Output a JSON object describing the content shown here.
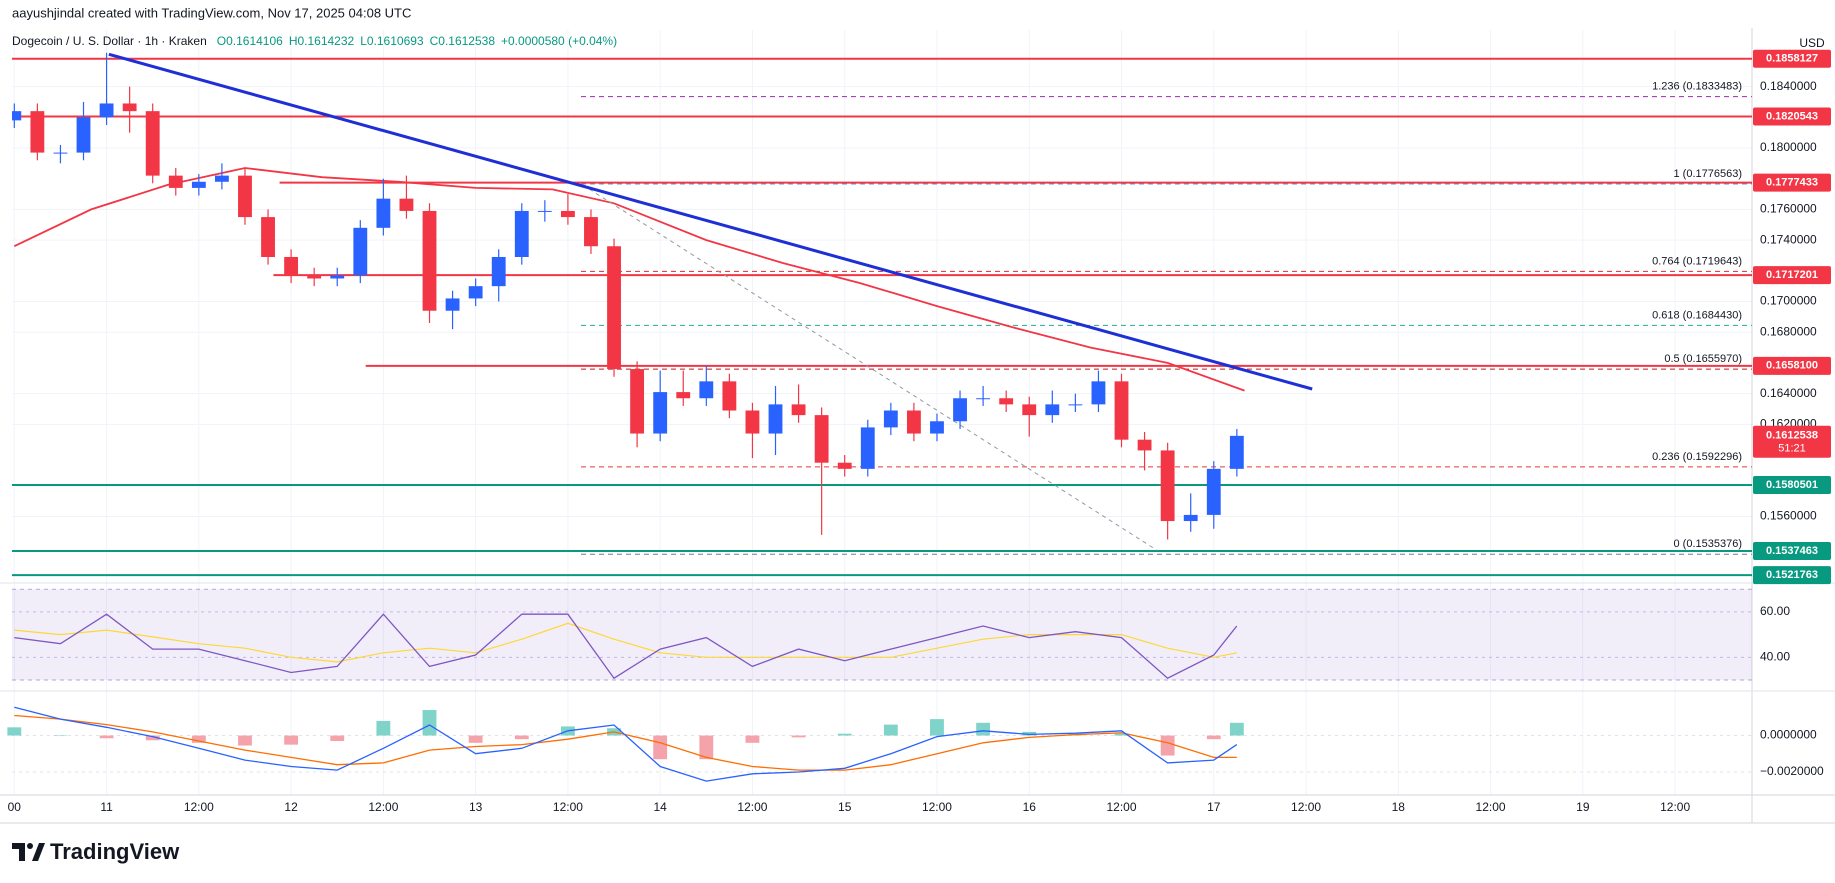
{
  "chart_data": {
    "type": "candlestick",
    "attribution": "aayushjindal created with TradingView.com, Nov 17, 2025 04:08 UTC",
    "title": "Dogecoin / U. S. Dollar · 1h · Kraken",
    "ohlc_labels": [
      "O0.1614106",
      "H0.1614232",
      "L0.1610693",
      "C0.1612538",
      "+0.0000580 (+0.04%)"
    ],
    "currency": "USD",
    "up_color": "#2962ff",
    "down_color": "#f23645",
    "x": [
      0,
      3,
      6,
      9,
      12,
      15,
      18,
      21,
      24,
      27,
      30,
      33,
      36,
      39,
      42,
      45,
      48,
      51,
      54,
      57,
      60,
      63,
      66,
      69,
      72,
      75,
      78,
      81,
      84,
      87,
      90,
      93,
      96,
      99,
      102,
      105,
      108,
      111,
      114,
      117,
      120,
      123,
      126,
      129,
      132,
      135,
      138,
      141,
      144,
      147,
      150,
      153,
      156,
      159
    ],
    "open": [
      0.1818,
      0.1824,
      0.1797,
      0.1797,
      0.182,
      0.1829,
      0.1824,
      0.1782,
      0.1774,
      0.1778,
      0.1782,
      0.1755,
      0.1729,
      0.1717,
      0.1715,
      0.1717,
      0.1748,
      0.1767,
      0.1759,
      0.1694,
      0.1702,
      0.171,
      0.1729,
      0.1759,
      0.1759,
      0.1755,
      0.1736,
      0.1656,
      0.1614,
      0.1641,
      0.1637,
      0.1648,
      0.1629,
      0.1614,
      0.1633,
      0.1626,
      0.1595,
      0.1591,
      0.1618,
      0.1629,
      0.1614,
      0.1622,
      0.1637,
      0.1637,
      0.1633,
      0.1626,
      0.1633,
      0.1633,
      0.1648,
      0.161,
      0.1603,
      0.1557,
      0.1561,
      0.1591
    ],
    "high": [
      0.1829,
      0.1829,
      0.1802,
      0.183,
      0.1862,
      0.184,
      0.1829,
      0.1787,
      0.1783,
      0.179,
      0.1787,
      0.176,
      0.1734,
      0.1722,
      0.1722,
      0.1753,
      0.178,
      0.1782,
      0.1764,
      0.1707,
      0.1715,
      0.1734,
      0.1764,
      0.1766,
      0.177,
      0.176,
      0.1741,
      0.1661,
      0.1655,
      0.1655,
      0.1658,
      0.1653,
      0.1634,
      0.1645,
      0.1646,
      0.1631,
      0.16,
      0.1623,
      0.1634,
      0.1634,
      0.1627,
      0.1642,
      0.1645,
      0.1642,
      0.1638,
      0.1642,
      0.164,
      0.1655,
      0.1653,
      0.1615,
      0.1608,
      0.1575,
      0.1596,
      0.1617
    ],
    "low": [
      0.1813,
      0.1792,
      0.179,
      0.1792,
      0.1815,
      0.181,
      0.1777,
      0.1769,
      0.1769,
      0.1773,
      0.175,
      0.1724,
      0.1712,
      0.171,
      0.171,
      0.1712,
      0.1743,
      0.1754,
      0.1686,
      0.1682,
      0.1697,
      0.17,
      0.1724,
      0.1752,
      0.175,
      0.1731,
      0.1651,
      0.1605,
      0.1609,
      0.1632,
      0.1632,
      0.1624,
      0.1598,
      0.16,
      0.1621,
      0.1548,
      0.1586,
      0.1586,
      0.1613,
      0.1609,
      0.1609,
      0.1617,
      0.1632,
      0.1628,
      0.1612,
      0.1621,
      0.1628,
      0.1628,
      0.1605,
      0.159,
      0.1545,
      0.155,
      0.1552,
      0.1586
    ],
    "close": [
      0.1824,
      0.1797,
      0.1797,
      0.182,
      0.1829,
      0.1824,
      0.1782,
      0.1774,
      0.1778,
      0.1782,
      0.1755,
      0.1729,
      0.1717,
      0.1715,
      0.1717,
      0.1748,
      0.1767,
      0.1759,
      0.1694,
      0.1702,
      0.171,
      0.1729,
      0.1759,
      0.1759,
      0.1755,
      0.1736,
      0.1656,
      0.1614,
      0.1641,
      0.1637,
      0.1648,
      0.1629,
      0.1614,
      0.1633,
      0.1626,
      0.1595,
      0.1591,
      0.1618,
      0.1629,
      0.1614,
      0.1622,
      0.1637,
      0.1637,
      0.1633,
      0.1626,
      0.1633,
      0.1633,
      0.1648,
      0.161,
      0.1603,
      0.1557,
      0.1561,
      0.1591,
      0.16125
    ],
    "xlim": [
      -0.3,
      226
    ],
    "xticks": [
      {
        "value": 0,
        "label": "00"
      },
      {
        "value": 12,
        "label": "11"
      },
      {
        "value": 24,
        "label": "12:00"
      },
      {
        "value": 36,
        "label": "12"
      },
      {
        "value": 48,
        "label": "12:00"
      },
      {
        "value": 60,
        "label": "13"
      },
      {
        "value": 72,
        "label": "12:00"
      },
      {
        "value": 84,
        "label": "14"
      },
      {
        "value": 96,
        "label": "12:00"
      },
      {
        "value": 108,
        "label": "15"
      },
      {
        "value": 120,
        "label": "12:00"
      },
      {
        "value": 132,
        "label": "16"
      },
      {
        "value": 144,
        "label": "12:00"
      },
      {
        "value": 156,
        "label": "17"
      },
      {
        "value": 168,
        "label": "12:00"
      },
      {
        "value": 180,
        "label": "18"
      },
      {
        "value": 192,
        "label": "12:00"
      },
      {
        "value": 204,
        "label": "19"
      },
      {
        "value": 216,
        "label": "12:00"
      }
    ],
    "ylim": [
      0.15173,
      0.18736
    ],
    "yticks": [
      {
        "value": 0.184,
        "label": "0.1840000"
      },
      {
        "value": 0.18,
        "label": "0.1800000"
      },
      {
        "value": 0.176,
        "label": "0.1760000"
      },
      {
        "value": 0.174,
        "label": "0.1740000"
      },
      {
        "value": 0.17,
        "label": "0.1700000"
      },
      {
        "value": 0.168,
        "label": "0.1680000"
      },
      {
        "value": 0.164,
        "label": "0.1640000"
      },
      {
        "value": 0.162,
        "label": "0.1620000"
      },
      {
        "value": 0.156,
        "label": "0.1560000"
      }
    ],
    "grid": true,
    "levels": [
      {
        "value": 0.1858127,
        "label": "0.1858127",
        "color": "#f23645",
        "start": -0.3
      },
      {
        "value": 0.1820543,
        "label": "0.1820543",
        "color": "#f23645",
        "start": -0.3
      },
      {
        "value": 0.1777433,
        "label": "0.1777433",
        "color": "#f23645",
        "start": 34.5
      },
      {
        "value": 0.1717201,
        "label": "0.1717201",
        "color": "#f23645",
        "start": 33.7
      },
      {
        "value": 0.16581,
        "label": "0.1658100",
        "color": "#f23645",
        "start": 45.7
      },
      {
        "value": 0.1580501,
        "label": "0.1580501",
        "color": "#089981",
        "start": -0.3
      },
      {
        "value": 0.1537463,
        "label": "0.1537463",
        "color": "#089981",
        "start": -0.3
      },
      {
        "value": 0.1521763,
        "label": "0.1521763",
        "color": "#089981",
        "start": -0.3
      }
    ],
    "fib_start": 73.7,
    "fib_levels": [
      {
        "value": 0.1833483,
        "label": "1.236 (0.1833483)",
        "color": "#9c27b0"
      },
      {
        "value": 0.1776563,
        "label": "1 (0.1776563)",
        "color": "#4aa3df"
      },
      {
        "value": 0.1719643,
        "label": "0.764 (0.1719643)",
        "color": "#d32f2f"
      },
      {
        "value": 0.168443,
        "label": "0.618 (0.1684430)",
        "color": "#22ab94"
      },
      {
        "value": 0.165597,
        "label": "0.5 (0.1655970)",
        "color": "#b71c1c"
      },
      {
        "value": 0.1592296,
        "label": "0.236 (0.1592296)",
        "color": "#e53935"
      },
      {
        "value": 0.1535376,
        "label": "0 (0.1535376)",
        "color": "#787b86"
      }
    ],
    "trendline": {
      "x": [
        12.3,
        168.8
      ],
      "values": [
        0.1861,
        0.1643
      ],
      "color": "#1e2fd6"
    },
    "projection": {
      "x": [
        73.9,
        148.6
      ],
      "values": [
        0.1776,
        0.1538
      ],
      "color": "#9598a1"
    },
    "ma": {
      "color": "#f23645",
      "x": [
        0,
        10,
        20,
        30,
        40,
        50,
        60,
        70,
        78,
        90,
        100,
        110,
        120,
        130,
        140,
        150,
        160
      ],
      "values": [
        0.1736,
        0.176,
        0.1776,
        0.1787,
        0.1781,
        0.1778,
        0.1774,
        0.1773,
        0.1764,
        0.174,
        0.1725,
        0.1712,
        0.1697,
        0.1683,
        0.167,
        0.166,
        0.1642
      ]
    },
    "last_price": {
      "value": 0.1612538,
      "label": "0.1612538",
      "countdown": "51:21",
      "color": "#f23645"
    },
    "rsi": {
      "x": [
        0,
        6,
        12,
        18,
        24,
        30,
        36,
        42,
        48,
        54,
        60,
        66,
        72,
        78,
        84,
        90,
        96,
        102,
        108,
        114,
        120,
        126,
        132,
        138,
        144,
        150,
        156,
        159
      ],
      "values": [
        48.7,
        46,
        59,
        43.6,
        43.6,
        38.5,
        33.3,
        36,
        59,
        36,
        41,
        59,
        59,
        30.8,
        43.6,
        48.7,
        36,
        43.6,
        38.5,
        43.6,
        48.7,
        53.8,
        48.7,
        51.3,
        48.7,
        30.8,
        41,
        53.8
      ],
      "ma_values": [
        52,
        50,
        52,
        49,
        46,
        44,
        40,
        38,
        42,
        44,
        42,
        48,
        55,
        48,
        42,
        40,
        40,
        40,
        40,
        40,
        44,
        48,
        50,
        50,
        50,
        44,
        40,
        42
      ],
      "color": "#7e57c2",
      "ma_color": "#fdd835",
      "band": [
        30,
        70
      ],
      "ylim": [
        25.6,
        72.3
      ],
      "yticks": [
        {
          "value": 60,
          "label": "60.00"
        },
        {
          "value": 40,
          "label": "40.00"
        }
      ]
    },
    "macd": {
      "x": [
        0,
        6,
        12,
        18,
        24,
        30,
        36,
        42,
        48,
        54,
        60,
        66,
        72,
        78,
        84,
        90,
        96,
        102,
        108,
        114,
        120,
        126,
        132,
        138,
        144,
        150,
        156,
        159
      ],
      "macd": [
        0.00155,
        0.0009,
        0.00045,
        -6e-05,
        -0.0007,
        -0.00135,
        -0.0017,
        -0.0019,
        -0.0007,
        0.00058,
        -0.001,
        -0.0007,
        0.00026,
        0.00058,
        -0.0017,
        -0.0025,
        -0.0021,
        -0.002,
        -0.0018,
        -0.001,
        -6e-05,
        0.00026,
        6e-05,
        0.00013,
        0.00026,
        -0.0015,
        -0.00135,
        -0.0005
      ],
      "signal": [
        0.0011,
        0.0009,
        0.0006,
        0.0002,
        -0.0003,
        -0.0008,
        -0.0012,
        -0.0016,
        -0.0015,
        -0.0008,
        -0.0006,
        -0.0005,
        -0.0002,
        0.0002,
        -0.0004,
        -0.0012,
        -0.0017,
        -0.0019,
        -0.0019,
        -0.0016,
        -0.001,
        -0.0004,
        -0.0001,
        5e-05,
        0.00015,
        -0.0004,
        -0.0012,
        -0.0012
      ],
      "histogram": [
        0.00045,
        0,
        -0.00015,
        -0.00026,
        -0.0004,
        -0.00055,
        -0.0005,
        -0.0003,
        0.0008,
        0.0014,
        -0.0004,
        -0.0002,
        0.0005,
        0.0004,
        -0.0013,
        -0.0013,
        -0.0004,
        -0.0001,
        0.0001,
        0.0006,
        0.0009,
        0.0007,
        0.0002,
        0.0001,
        0.0001,
        -0.0011,
        -0.0002,
        0.0007
      ],
      "macd_color": "#2962ff",
      "signal_color": "#ff6d00",
      "pos_color": "#7fd3c9",
      "neg_color": "#f5a3aa",
      "ylim": [
        -0.0031,
        0.00239
      ],
      "yticks": [
        {
          "value": 0,
          "label": "0.0000000"
        },
        {
          "value": -0.002,
          "label": "−0.0020000"
        }
      ]
    }
  },
  "logo": "TradingView"
}
